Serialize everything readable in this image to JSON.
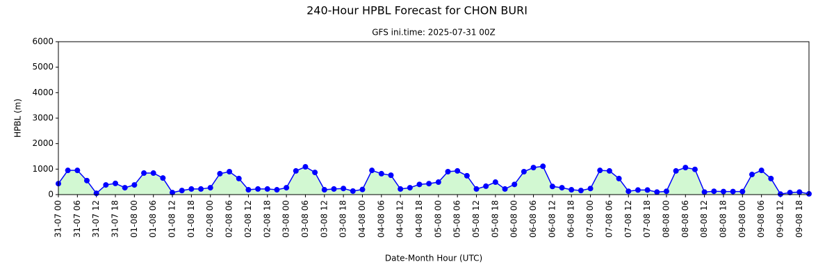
{
  "chart_data": {
    "type": "line",
    "title": "240-Hour HPBL Forecast for CHON BURI",
    "subtitle": "GFS ini.time: 2025-07-31 00Z",
    "x_label": "Date-Month Hour (UTC)",
    "y_label": "HPBL (m)",
    "categories": [
      "31-07 00",
      null,
      "31-07 06",
      null,
      "31-07 12",
      null,
      "31-07 18",
      null,
      "01-08 00",
      null,
      "01-08 06",
      null,
      "01-08 12",
      null,
      "01-08 18",
      null,
      "02-08 00",
      null,
      "02-08 06",
      null,
      "02-08 12",
      null,
      "02-08 18",
      null,
      "03-08 00",
      null,
      "03-08 06",
      null,
      "03-08 12",
      null,
      "03-08 18",
      null,
      "04-08 00",
      null,
      "04-08 06",
      null,
      "04-08 12",
      null,
      "04-08 18",
      null,
      "05-08 00",
      null,
      "05-08 06",
      null,
      "05-08 12",
      null,
      "05-08 18",
      null,
      "06-08 00",
      null,
      "06-08 06",
      null,
      "06-08 12",
      null,
      "06-08 18",
      null,
      "07-08 00",
      null,
      "07-08 06",
      null,
      "07-08 12",
      null,
      "07-08 18",
      null,
      "08-08 00",
      null,
      "08-08 06",
      null,
      "08-08 12",
      null,
      "08-08 18",
      null,
      "09-08 00",
      null,
      "09-08 06",
      null,
      "09-08 12",
      null,
      "09-08 18",
      null
    ],
    "series": [
      {
        "name": "HPBL",
        "color": "#0000ff",
        "fill": "#d2f8d2",
        "values": [
          430,
          950,
          950,
          550,
          50,
          380,
          440,
          270,
          380,
          845,
          845,
          650,
          80,
          160,
          220,
          220,
          270,
          820,
          900,
          630,
          190,
          220,
          220,
          190,
          270,
          930,
          1090,
          870,
          190,
          220,
          240,
          140,
          200,
          950,
          820,
          760,
          220,
          270,
          400,
          430,
          490,
          900,
          930,
          740,
          220,
          330,
          490,
          220,
          400,
          900,
          1060,
          1110,
          320,
          270,
          190,
          160,
          240,
          950,
          930,
          630,
          130,
          180,
          180,
          100,
          130,
          930,
          1060,
          990,
          100,
          130,
          120,
          120,
          120,
          790,
          950,
          630,
          20,
          80,
          100,
          30
        ]
      }
    ],
    "ylim": [
      0,
      6000
    ],
    "yticks": [
      0,
      1000,
      2000,
      3000,
      4000,
      5000,
      6000
    ]
  }
}
